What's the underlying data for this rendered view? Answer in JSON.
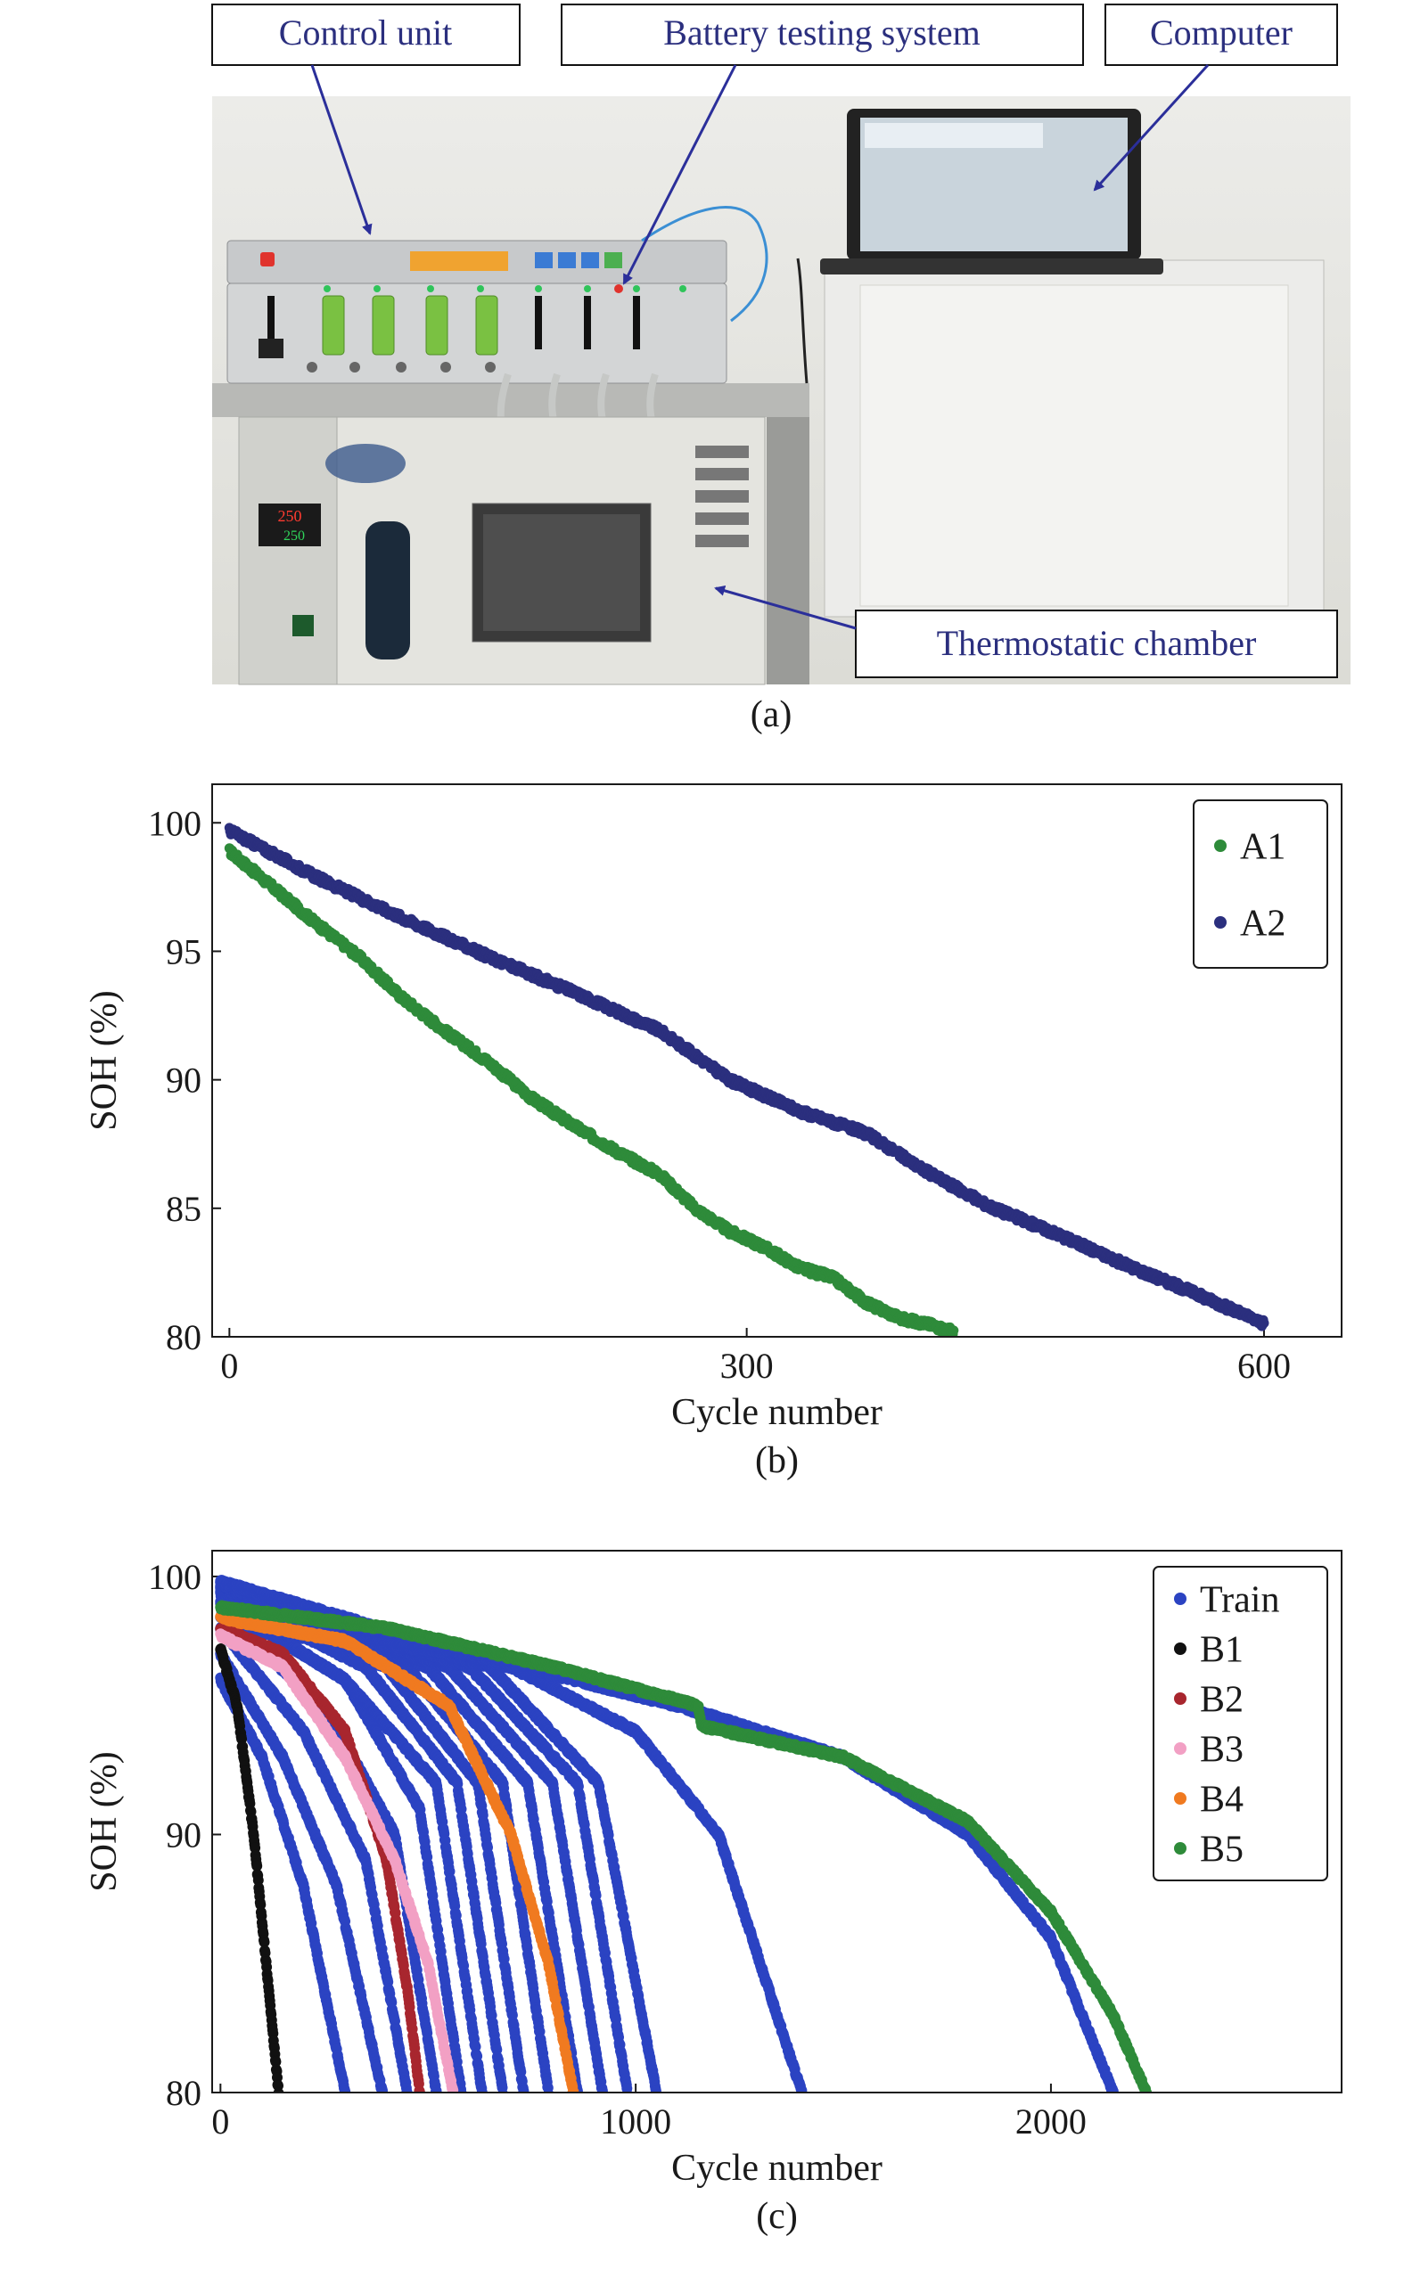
{
  "panel_a": {
    "label": "(a)",
    "callouts": {
      "control_unit": "Control unit",
      "battery_testing_system": "Battery testing system",
      "computer": "Computer",
      "thermostatic_chamber": "Thermostatic chamber"
    },
    "display": {
      "pv": "250",
      "sv": "250"
    },
    "colors": {
      "wall": "#e9e9e6",
      "arrow": "#2b2f9a",
      "device": "#c9cbcc",
      "chamber": "#e2e2dd"
    }
  },
  "chart_data": [
    {
      "type": "scatter",
      "panel_label": "(b)",
      "xlabel": "Cycle number",
      "ylabel": "SOH (%)",
      "xlim": [
        -10,
        645
      ],
      "ylim": [
        80,
        101.5
      ],
      "xticks": [
        "0",
        "300",
        "600"
      ],
      "yticks": [
        "80",
        "85",
        "90",
        "95",
        "100"
      ],
      "legend_position": "top-right",
      "series": [
        {
          "name": "A1",
          "color": "#2e8b3a",
          "points": [
            [
              0,
              98.9
            ],
            [
              25,
              97.5
            ],
            [
              50,
              96.1
            ],
            [
              75,
              94.8
            ],
            [
              100,
              93.2
            ],
            [
              125,
              91.9
            ],
            [
              150,
              90.7
            ],
            [
              175,
              89.3
            ],
            [
              200,
              88.2
            ],
            [
              225,
              87.2
            ],
            [
              250,
              86.3
            ],
            [
              270,
              85.0
            ],
            [
              290,
              84.1
            ],
            [
              310,
              83.5
            ],
            [
              330,
              82.7
            ],
            [
              350,
              82.3
            ],
            [
              370,
              81.3
            ],
            [
              390,
              80.7
            ],
            [
              405,
              80.5
            ],
            [
              420,
              80.2
            ]
          ]
        },
        {
          "name": "A2",
          "color": "#2b2f7e",
          "points": [
            [
              0,
              99.7
            ],
            [
              50,
              97.9
            ],
            [
              100,
              96.3
            ],
            [
              150,
              94.8
            ],
            [
              200,
              93.4
            ],
            [
              250,
              91.9
            ],
            [
              290,
              90.0
            ],
            [
              330,
              88.8
            ],
            [
              370,
              87.9
            ],
            [
              400,
              86.6
            ],
            [
              440,
              85.1
            ],
            [
              480,
              84.0
            ],
            [
              520,
              82.8
            ],
            [
              560,
              81.7
            ],
            [
              600,
              80.5
            ]
          ]
        }
      ]
    },
    {
      "type": "scatter",
      "panel_label": "(c)",
      "xlabel": "Cycle number",
      "ylabel": "SOH (%)",
      "xlim": [
        -20,
        2700
      ],
      "ylim": [
        80,
        101
      ],
      "xticks": [
        "0",
        "1000",
        "2000"
      ],
      "yticks": [
        "80",
        "90",
        "100"
      ],
      "legend_position": "top-right",
      "series": [
        {
          "name": "Train",
          "color": "#2b43c2",
          "curves": [
            [
              [
                0,
                96
              ],
              [
                100,
                93
              ],
              [
                200,
                88
              ],
              [
                300,
                80
              ]
            ],
            [
              [
                0,
                97
              ],
              [
                150,
                93
              ],
              [
                280,
                88
              ],
              [
                390,
                80
              ]
            ],
            [
              [
                0,
                98
              ],
              [
                200,
                94
              ],
              [
                350,
                89
              ],
              [
                450,
                80
              ]
            ],
            [
              [
                0,
                98.5
              ],
              [
                250,
                95
              ],
              [
                420,
                90
              ],
              [
                520,
                80
              ]
            ],
            [
              [
                0,
                99
              ],
              [
                300,
                96
              ],
              [
                480,
                91
              ],
              [
                580,
                80
              ]
            ],
            [
              [
                0,
                99
              ],
              [
                300,
                96
              ],
              [
                520,
                92
              ],
              [
                630,
                80
              ]
            ],
            [
              [
                0,
                99.3
              ],
              [
                350,
                96.5
              ],
              [
                570,
                92
              ],
              [
                680,
                80
              ]
            ],
            [
              [
                0,
                99.4
              ],
              [
                400,
                96.5
              ],
              [
                620,
                92
              ],
              [
                730,
                80
              ]
            ],
            [
              [
                0,
                99.5
              ],
              [
                450,
                96.5
              ],
              [
                680,
                92
              ],
              [
                790,
                80
              ]
            ],
            [
              [
                0,
                99.6
              ],
              [
                500,
                96.5
              ],
              [
                740,
                92
              ],
              [
                860,
                80
              ]
            ],
            [
              [
                0,
                99.7
              ],
              [
                550,
                96.5
              ],
              [
                800,
                92
              ],
              [
                920,
                80
              ]
            ],
            [
              [
                0,
                99.7
              ],
              [
                600,
                96.5
              ],
              [
                860,
                92
              ],
              [
                980,
                80
              ]
            ],
            [
              [
                0,
                99.8
              ],
              [
                650,
                96.5
              ],
              [
                910,
                92
              ],
              [
                1050,
                80
              ]
            ],
            [
              [
                0,
                99.8
              ],
              [
                700,
                96.5
              ],
              [
                1000,
                94
              ],
              [
                1200,
                90
              ],
              [
                1400,
                80
              ]
            ],
            [
              [
                0,
                98
              ],
              [
                600,
                97
              ],
              [
                1100,
                95
              ],
              [
                1500,
                93
              ],
              [
                1800,
                90
              ],
              [
                2000,
                86
              ],
              [
                2150,
                80
              ]
            ]
          ]
        },
        {
          "name": "B1",
          "color": "#111111",
          "curves": [
            [
              [
                0,
                97.2
              ],
              [
                40,
                95
              ],
              [
                80,
                90
              ],
              [
                110,
                85
              ],
              [
                140,
                80
              ]
            ]
          ]
        },
        {
          "name": "B2",
          "color": "#a8262e",
          "curves": [
            [
              [
                0,
                98.0
              ],
              [
                150,
                97
              ],
              [
                300,
                94
              ],
              [
                400,
                89
              ],
              [
                450,
                84
              ],
              [
                480,
                80
              ]
            ]
          ]
        },
        {
          "name": "B3",
          "color": "#f2a0c4",
          "curves": [
            [
              [
                0,
                97.7
              ],
              [
                150,
                96.5
              ],
              [
                300,
                93
              ],
              [
                420,
                89
              ],
              [
                500,
                85
              ],
              [
                560,
                80
              ]
            ]
          ]
        },
        {
          "name": "B4",
          "color": "#f07a20",
          "curves": [
            [
              [
                0,
                98.4
              ],
              [
                300,
                97.5
              ],
              [
                550,
                95
              ],
              [
                700,
                90
              ],
              [
                790,
                85
              ],
              [
                850,
                80
              ]
            ]
          ]
        },
        {
          "name": "B5",
          "color": "#2e8b3a",
          "curves": [
            [
              [
                0,
                98.8
              ],
              [
                400,
                98
              ],
              [
                800,
                96.5
              ],
              [
                1150,
                95
              ],
              [
                1160,
                94.2
              ],
              [
                1500,
                93
              ],
              [
                1800,
                90.5
              ],
              [
                2000,
                87
              ],
              [
                2150,
                83
              ],
              [
                2230,
                80
              ]
            ]
          ]
        }
      ]
    }
  ]
}
